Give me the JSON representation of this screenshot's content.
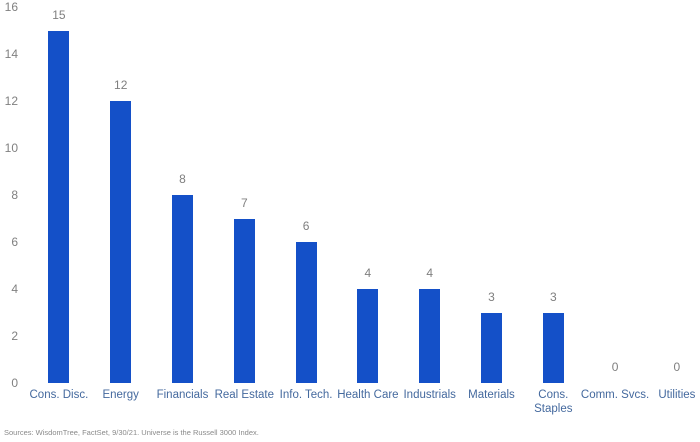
{
  "chart_data": {
    "type": "bar",
    "title": "",
    "xlabel": "",
    "ylabel": "",
    "categories": [
      "Cons. Disc.",
      "Energy",
      "Financials",
      "Real Estate",
      "Info. Tech.",
      "Health Care",
      "Industrials",
      "Materials",
      "Cons. Staples",
      "Comm. Svcs.",
      "Utilities"
    ],
    "category_label_lines": [
      [
        "Cons. Disc."
      ],
      [
        "Energy"
      ],
      [
        "Financials"
      ],
      [
        "Real Estate"
      ],
      [
        "Info. Tech."
      ],
      [
        "Health Care"
      ],
      [
        "Industrials"
      ],
      [
        "Materials"
      ],
      [
        "Cons.",
        "Staples"
      ],
      [
        "Comm. Svcs."
      ],
      [
        "Utilities"
      ]
    ],
    "values": [
      15,
      12,
      8,
      7,
      6,
      4,
      4,
      3,
      3,
      0,
      0
    ],
    "value_labels": [
      "15",
      "12",
      "8",
      "7",
      "6",
      "4",
      "4",
      "3",
      "3",
      "0",
      "0"
    ],
    "ylim": [
      0,
      16
    ],
    "yticks": [
      0,
      2,
      4,
      6,
      8,
      10,
      12,
      14,
      16
    ],
    "grid": false,
    "legend": null,
    "value_labels_shown": true,
    "source_note": "Sources: WisdomTree, FactSet, 9/30/21. Universe is the Russell 3000 Index."
  },
  "colors": {
    "bar": "#1450C8",
    "value_label": "#7f7f7f",
    "axis_tick_label": "#808080",
    "category_label": "#44699E",
    "source_note": "#8a8a8a",
    "background": "#ffffff"
  }
}
